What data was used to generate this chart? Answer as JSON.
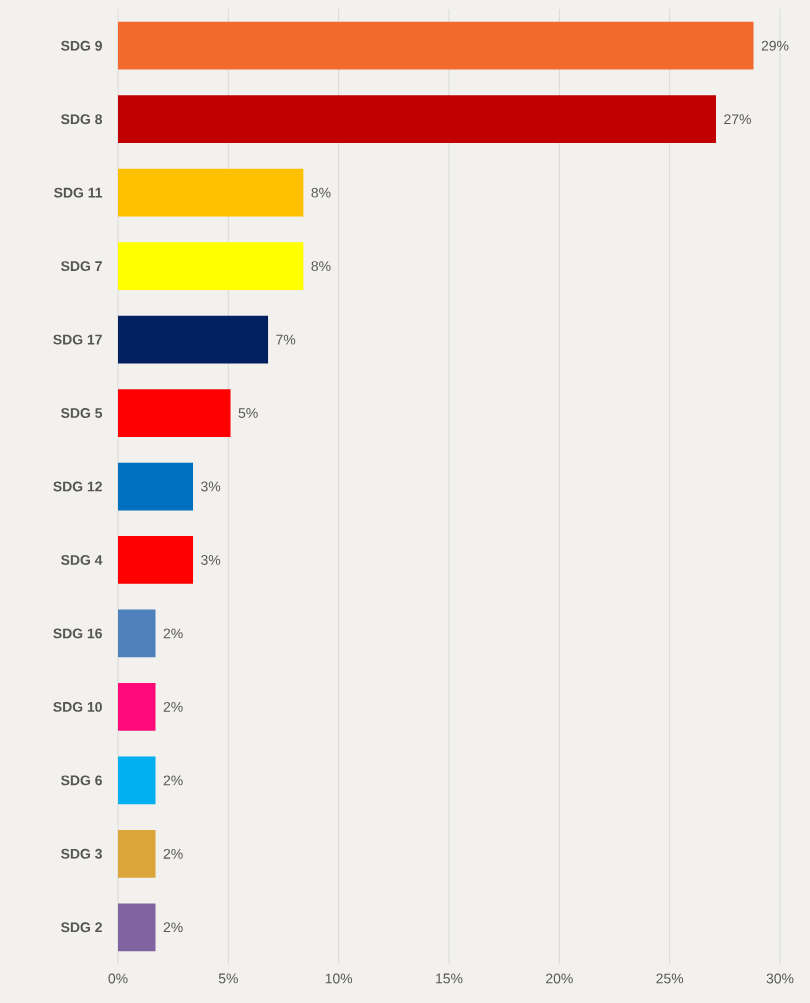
{
  "chart_data": {
    "type": "bar",
    "orientation": "horizontal",
    "categories": [
      "SDG 9",
      "SDG 8",
      "SDG 11",
      "SDG 7",
      "SDG 17",
      "SDG 5",
      "SDG 12",
      "SDG 4",
      "SDG 16",
      "SDG 10",
      "SDG 6",
      "SDG 3",
      "SDG 2"
    ],
    "values": [
      28.8,
      27.1,
      8.4,
      8.4,
      6.8,
      5.1,
      3.4,
      3.4,
      1.7,
      1.7,
      1.7,
      1.7,
      1.7
    ],
    "colors": [
      "#f26a2e",
      "#c00000",
      "#ffc000",
      "#ffff00",
      "#002060",
      "#ff0000",
      "#0070c0",
      "#ff0000",
      "#4f81bd",
      "#ff0a78",
      "#00b0f0",
      "#dda63a",
      "#8064a2"
    ],
    "value_labels": [
      "29%",
      "27%",
      "8%",
      "8%",
      "7%",
      "5%",
      "3%",
      "3%",
      "2%",
      "2%",
      "2%",
      "2%",
      "2%"
    ],
    "xlim": [
      0,
      30
    ],
    "xticks": [
      {
        "value": 0,
        "label": "0%"
      },
      {
        "value": 5,
        "label": "5%"
      },
      {
        "value": 10,
        "label": "10%"
      },
      {
        "value": 15,
        "label": "15%"
      },
      {
        "value": 20,
        "label": "20%"
      },
      {
        "value": 25,
        "label": "25%"
      },
      {
        "value": 30,
        "label": "30%"
      }
    ],
    "grid": "x"
  }
}
